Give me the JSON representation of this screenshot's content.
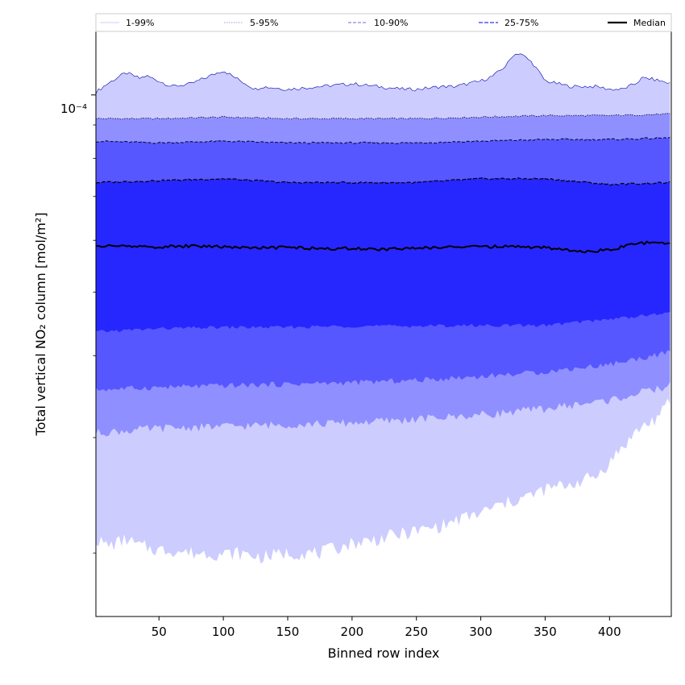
{
  "chart_data": {
    "type": "area",
    "xlabel": "Binned row index",
    "ylabel": "Total vertical NO₂ column [mol/m²]",
    "yscale": "log",
    "xlim": [
      1,
      448
    ],
    "ylim": [
      1.6e-05,
      0.000125
    ],
    "x_ticks": [
      50,
      100,
      150,
      200,
      250,
      300,
      350,
      400
    ],
    "y_tick_major_label": "10⁻⁴",
    "grid": false,
    "legend_position": "top",
    "colors": {
      "band_1_99": "#ccccff",
      "band_5_95": "#8f8fff",
      "band_10_90": "#5757ff",
      "band_25_75": "#2626ff",
      "median": "#000000"
    },
    "series": [
      {
        "name": "1-99%",
        "role": "band",
        "x": [
          1,
          10,
          20,
          25,
          30,
          35,
          40,
          50,
          60,
          75,
          90,
          100,
          110,
          125,
          130,
          150,
          175,
          200,
          220,
          240,
          250,
          270,
          280,
          300,
          310,
          320,
          325,
          330,
          340,
          350,
          370,
          390,
          400,
          410,
          420,
          425,
          430,
          440,
          448
        ],
        "upper": [
          0.000101,
          0.000104,
          0.000107,
          0.000108,
          0.000107,
          0.000106,
          0.000107,
          0.000105,
          0.000103,
          0.000104,
          0.000107,
          0.000109,
          0.000106,
          0.000102,
          0.000103,
          0.000102,
          0.000103,
          0.000104,
          0.000103,
          0.000102,
          0.000102,
          0.000103,
          0.000103,
          0.000105,
          0.000107,
          0.000111,
          0.000115,
          0.000116,
          0.000112,
          0.000105,
          0.000103,
          0.000103,
          0.000102,
          0.000102,
          0.000104,
          0.000106,
          0.000106,
          0.000105,
          0.000104
        ],
        "lower": [
          2.1e-05,
          2.05e-05,
          2.08e-05,
          2.1e-05,
          2.07e-05,
          2.05e-05,
          2.04e-05,
          2.02e-05,
          2.02e-05,
          2e-05,
          2e-05,
          1.99e-05,
          2e-05,
          1.98e-05,
          1.97e-05,
          2e-05,
          2e-05,
          2.07e-05,
          2.1e-05,
          2.14e-05,
          2.16e-05,
          2.2e-05,
          2.24e-05,
          2.3e-05,
          2.35e-05,
          2.38e-05,
          2.4e-05,
          2.42e-05,
          2.45e-05,
          2.5e-05,
          2.55e-05,
          2.62e-05,
          2.75e-05,
          2.9e-05,
          3.05e-05,
          3.12e-05,
          3.15e-05,
          3.25e-05,
          3.45e-05
        ]
      },
      {
        "name": "5-95%",
        "role": "band",
        "x": [
          1,
          50,
          100,
          150,
          200,
          250,
          300,
          350,
          400,
          448
        ],
        "upper": [
          9.2e-05,
          9.2e-05,
          9.25e-05,
          9.2e-05,
          9.2e-05,
          9.2e-05,
          9.25e-05,
          9.3e-05,
          9.3e-05,
          9.35e-05
        ],
        "lower": [
          3.05e-05,
          3.1e-05,
          3.12e-05,
          3.14e-05,
          3.16e-05,
          3.2e-05,
          3.25e-05,
          3.32e-05,
          3.42e-05,
          3.6e-05
        ]
      },
      {
        "name": "10-90%",
        "role": "band",
        "x": [
          1,
          50,
          100,
          150,
          200,
          250,
          300,
          350,
          400,
          448
        ],
        "upper": [
          8.5e-05,
          8.45e-05,
          8.5e-05,
          8.45e-05,
          8.45e-05,
          8.45e-05,
          8.5e-05,
          8.55e-05,
          8.55e-05,
          8.6e-05
        ],
        "lower": [
          3.55e-05,
          3.58e-05,
          3.6e-05,
          3.62e-05,
          3.64e-05,
          3.67e-05,
          3.72e-05,
          3.78e-05,
          3.88e-05,
          4.05e-05
        ]
      },
      {
        "name": "25-75%",
        "role": "band",
        "x": [
          1,
          50,
          100,
          150,
          200,
          250,
          300,
          350,
          400,
          448
        ],
        "upper": [
          7.35e-05,
          7.4e-05,
          7.45e-05,
          7.35e-05,
          7.35e-05,
          7.35e-05,
          7.45e-05,
          7.45e-05,
          7.3e-05,
          7.35e-05
        ],
        "lower": [
          4.35e-05,
          4.4e-05,
          4.42e-05,
          4.42e-05,
          4.44e-05,
          4.44e-05,
          4.45e-05,
          4.45e-05,
          4.55e-05,
          4.65e-05
        ]
      },
      {
        "name": "Median",
        "role": "line",
        "x": [
          1,
          25,
          50,
          75,
          100,
          125,
          150,
          175,
          200,
          225,
          250,
          275,
          300,
          325,
          350,
          375,
          390,
          400,
          410,
          420,
          430,
          440,
          448
        ],
        "y": [
          5.88e-05,
          5.88e-05,
          5.86e-05,
          5.88e-05,
          5.87e-05,
          5.84e-05,
          5.85e-05,
          5.83e-05,
          5.83e-05,
          5.81e-05,
          5.84e-05,
          5.86e-05,
          5.87e-05,
          5.87e-05,
          5.85e-05,
          5.77e-05,
          5.78e-05,
          5.81e-05,
          5.86e-05,
          5.92e-05,
          5.95e-05,
          5.93e-05,
          5.95e-05
        ]
      }
    ]
  }
}
